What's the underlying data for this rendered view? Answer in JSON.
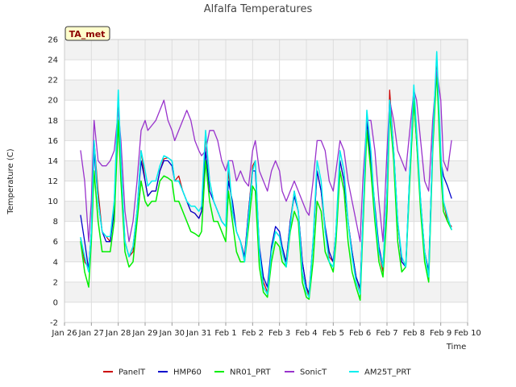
{
  "chart_data": {
    "type": "line",
    "title": "Alfalfa Temperatures",
    "xlabel": "Time",
    "ylabel": "Temperature (C)",
    "badge": "TA_met",
    "ylim": [
      -2,
      26
    ],
    "yticks": [
      -2,
      0,
      2,
      4,
      6,
      8,
      10,
      12,
      14,
      16,
      18,
      20,
      22,
      24,
      26
    ],
    "xlim": [
      0,
      15
    ],
    "xticks": [
      {
        "v": 0,
        "label": "Jan 26"
      },
      {
        "v": 1,
        "label": "Jan 27"
      },
      {
        "v": 2,
        "label": "Jan 28"
      },
      {
        "v": 3,
        "label": "Jan 29"
      },
      {
        "v": 4,
        "label": "Jan 30"
      },
      {
        "v": 5,
        "label": "Jan 31"
      },
      {
        "v": 6,
        "label": "Feb 1"
      },
      {
        "v": 7,
        "label": "Feb 2"
      },
      {
        "v": 8,
        "label": "Feb 3"
      },
      {
        "v": 9,
        "label": "Feb 4"
      },
      {
        "v": 10,
        "label": "Feb 5"
      },
      {
        "v": 11,
        "label": "Feb 6"
      },
      {
        "v": 12,
        "label": "Feb 7"
      },
      {
        "v": 13,
        "label": "Feb 8"
      },
      {
        "v": 14,
        "label": "Feb 9"
      },
      {
        "v": 15,
        "label": "Feb 10"
      }
    ],
    "grid": true,
    "legend_position": "bottom",
    "x_day_offsets": [
      0.6,
      0.75,
      0.9,
      1.0,
      1.1,
      1.25,
      1.4,
      1.55,
      1.7,
      1.85,
      2.0,
      2.1,
      2.25,
      2.4,
      2.55,
      2.7,
      2.85,
      3.0,
      3.1,
      3.25,
      3.4,
      3.55,
      3.7,
      3.85,
      4.0,
      4.1,
      4.25,
      4.4,
      4.55,
      4.7,
      4.85,
      5.0,
      5.1,
      5.25,
      5.4,
      5.55,
      5.7,
      5.85,
      6.0,
      6.1,
      6.25,
      6.4,
      6.55,
      6.7,
      6.85,
      7.0,
      7.1,
      7.25,
      7.4,
      7.55,
      7.7,
      7.85,
      8.0,
      8.1,
      8.25,
      8.4,
      8.55,
      8.7,
      8.85,
      9.0,
      9.1,
      9.25,
      9.4,
      9.55,
      9.7,
      9.85,
      10.0,
      10.1,
      10.25,
      10.4,
      10.55,
      10.7,
      10.85,
      11.0,
      11.1,
      11.25,
      11.4,
      11.55,
      11.7,
      11.85,
      12.0,
      12.1,
      12.25,
      12.4,
      12.55,
      12.7,
      12.85,
      13.0,
      13.1,
      13.25,
      13.4,
      13.55,
      13.7,
      13.85,
      14.0,
      14.1,
      14.25,
      14.4
    ],
    "series": [
      {
        "name": "PanelT",
        "color": "#cc0000",
        "width": 1.2,
        "values": [
          6.3,
          4,
          3.4,
          7,
          16,
          11,
          7,
          6.5,
          6,
          10,
          20,
          14,
          6,
          4.5,
          5,
          9,
          15,
          12,
          10.5,
          11,
          11,
          13,
          14.2,
          14.3,
          14,
          12,
          12.5,
          11,
          10,
          9,
          8.8,
          8.3,
          9,
          16.5,
          12,
          10,
          9,
          8,
          7.5,
          13,
          9,
          7,
          6,
          4.5,
          9,
          13.5,
          14,
          5,
          2,
          1,
          5,
          7,
          6.5,
          5,
          4,
          8,
          11,
          9,
          4,
          1.5,
          0.6,
          6,
          13,
          11,
          7,
          4.5,
          4,
          7,
          14,
          12,
          8,
          5,
          2.5,
          1.2,
          8,
          18,
          14,
          9,
          5,
          3,
          11,
          21,
          15,
          8,
          4,
          3.5,
          13,
          21,
          16,
          10,
          5,
          3,
          16,
          24,
          14,
          10,
          8,
          7.5
        ]
      },
      {
        "name": "HMP60",
        "color": "#0000cc",
        "width": 1.3,
        "values": [
          8.6,
          6,
          3.2,
          7,
          15,
          10,
          7,
          6,
          6,
          9,
          18,
          13,
          6,
          4.5,
          5.5,
          9,
          14,
          12,
          10.5,
          11,
          11,
          13,
          14,
          14,
          13.5,
          12,
          12,
          11,
          10,
          9,
          8.8,
          8.3,
          9,
          15,
          11,
          10,
          9,
          8,
          7.5,
          12,
          10,
          7,
          6,
          4.5,
          9,
          13,
          13,
          5.5,
          2.5,
          1.5,
          5.5,
          7.5,
          7,
          5.5,
          4,
          8,
          10.5,
          9,
          4,
          1.5,
          0.9,
          6,
          13,
          11,
          7.5,
          5,
          4,
          7,
          14,
          12,
          8,
          5,
          2.5,
          1.4,
          8,
          18,
          14,
          9.5,
          5.5,
          3.5,
          11,
          20,
          15,
          8,
          4,
          3.5,
          13,
          20,
          16,
          10,
          5,
          3,
          16,
          23,
          14,
          12.5,
          11.5,
          10.3
        ]
      },
      {
        "name": "NR01_PRT",
        "color": "#00ee00",
        "width": 1.5,
        "values": [
          6,
          3,
          1.5,
          6,
          13,
          8,
          5,
          5,
          5,
          8,
          18,
          12,
          5,
          3.5,
          4,
          8,
          12,
          10,
          9.5,
          10,
          10,
          12,
          12.5,
          12.3,
          12,
          10,
          10,
          9,
          8,
          7,
          6.8,
          6.5,
          7,
          14,
          10,
          8,
          8,
          7,
          6,
          11,
          8,
          5,
          4,
          4,
          7.5,
          11.5,
          11,
          3.5,
          1,
          0.5,
          4,
          6,
          5.5,
          4,
          3.5,
          7,
          9,
          8,
          2,
          0.5,
          0.3,
          4,
          10,
          9,
          5,
          4,
          3,
          6,
          13,
          11,
          6,
          3,
          1.5,
          0.2,
          7,
          17,
          13,
          8,
          4,
          2.5,
          9,
          19,
          14,
          6,
          3,
          3.5,
          12,
          20,
          16,
          9,
          4,
          2,
          15,
          23,
          13,
          9,
          8,
          7.2
        ]
      },
      {
        "name": "SonicT",
        "color": "#9933cc",
        "width": 1.3,
        "values": [
          15,
          12,
          6,
          10,
          18,
          14,
          13.5,
          13.5,
          14,
          15,
          19,
          16,
          9,
          6,
          8,
          12,
          17,
          18,
          17,
          17.5,
          18,
          19,
          20,
          18,
          17,
          16,
          17,
          18,
          19,
          18,
          16,
          15,
          14.5,
          15,
          17,
          17,
          16,
          14,
          13,
          14,
          14,
          12,
          13,
          12,
          11.5,
          15,
          16,
          13,
          12,
          11,
          13,
          14,
          13,
          11,
          10,
          11,
          12,
          11,
          10,
          9,
          8.6,
          12,
          16,
          16,
          15,
          12,
          11,
          13,
          16,
          15,
          12,
          10,
          8,
          6,
          12,
          18,
          18,
          15,
          10,
          6,
          15,
          20,
          18,
          15,
          14,
          13,
          17,
          21,
          20,
          16,
          12,
          11,
          18,
          23,
          20,
          14,
          13,
          16
        ]
      },
      {
        "name": "AM25T_PRT",
        "color": "#00eeee",
        "width": 1.5,
        "values": [
          6.4,
          4.5,
          3,
          7,
          16,
          10,
          7,
          6.5,
          6.5,
          10,
          21,
          14,
          6,
          4.5,
          5.5,
          9,
          15,
          13,
          11.5,
          12,
          12,
          13.5,
          14.5,
          14.3,
          14,
          12,
          12,
          11,
          10,
          9.5,
          9.5,
          9,
          9.5,
          17,
          12,
          10,
          9,
          8,
          7.5,
          14,
          9,
          7,
          6,
          4,
          8.5,
          13,
          14,
          5,
          1.5,
          0.8,
          5,
          7,
          6.5,
          5,
          3.5,
          7.5,
          11,
          9,
          3,
          1,
          0.5,
          6,
          14,
          12,
          7,
          4,
          3.5,
          7,
          15,
          13,
          8,
          4.5,
          2,
          0.8,
          8,
          19,
          15,
          9,
          5,
          3.5,
          11,
          20,
          15,
          8,
          4.5,
          3.5,
          13,
          21.5,
          17,
          10,
          5,
          2.5,
          16,
          24.8,
          15,
          10,
          8.5,
          7.2
        ]
      }
    ]
  }
}
